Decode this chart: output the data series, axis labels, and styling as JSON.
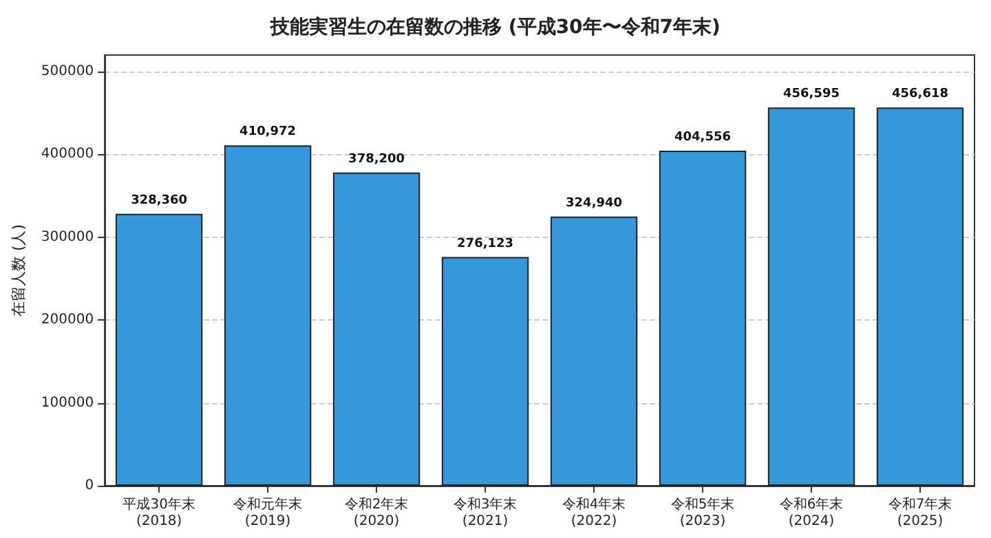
{
  "chart_data": {
    "type": "bar",
    "title": "技能実習生の在留数の推移 (平成30年〜令和7年末)",
    "ylabel": "在留人数 (人)",
    "categories": [
      "平成30年末\n(2018)",
      "令和元年末\n(2019)",
      "令和2年末\n(2020)",
      "令和3年末\n(2021)",
      "令和4年末\n(2022)",
      "令和5年末\n(2023)",
      "令和6年末\n(2024)",
      "令和7年末\n(2025)"
    ],
    "values": [
      328360,
      410972,
      378200,
      276123,
      324940,
      404556,
      456595,
      456618
    ],
    "value_labels": [
      "328,360",
      "410,972",
      "378,200",
      "276,123",
      "324,940",
      "404,556",
      "456,595",
      "456,618"
    ],
    "color": "#3498db",
    "ylim": [
      0,
      520000
    ],
    "yticks": [
      0,
      100000,
      200000,
      300000,
      400000,
      500000
    ],
    "grid": "y"
  }
}
